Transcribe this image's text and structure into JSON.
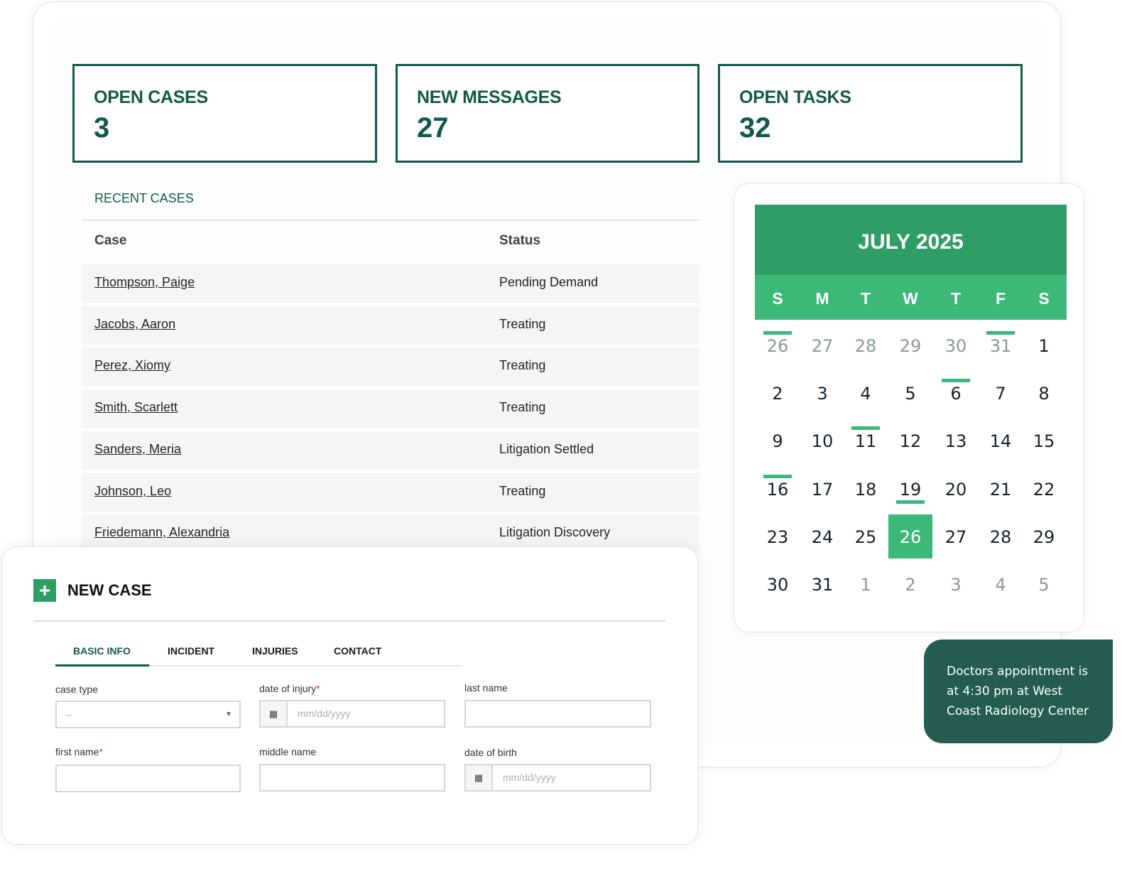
{
  "stats": [
    {
      "label": "OPEN CASES",
      "value": "3"
    },
    {
      "label": "NEW MESSAGES",
      "value": "27"
    },
    {
      "label": "OPEN TASKS",
      "value": "32"
    }
  ],
  "recent_cases": {
    "title": "RECENT CASES",
    "headers": {
      "case": "Case",
      "status": "Status"
    },
    "rows": [
      {
        "name": "Thompson, Paige",
        "status": "Pending Demand"
      },
      {
        "name": "Jacobs, Aaron",
        "status": "Treating"
      },
      {
        "name": "Perez, Xiomy",
        "status": "Treating"
      },
      {
        "name": "Smith, Scarlett",
        "status": "Treating"
      },
      {
        "name": "Sanders, Meria",
        "status": "Litigation Settled"
      },
      {
        "name": "Johnson, Leo",
        "status": "Treating"
      },
      {
        "name": "Friedemann, Alexandria",
        "status": "Litigation Discovery"
      }
    ]
  },
  "calendar": {
    "title": "JULY 2025",
    "weekdays": [
      "S",
      "M",
      "T",
      "W",
      "T",
      "F",
      "S"
    ],
    "weeks": [
      [
        {
          "d": "26",
          "other": true,
          "event": true
        },
        {
          "d": "27",
          "other": true
        },
        {
          "d": "28",
          "other": true
        },
        {
          "d": "29",
          "other": true
        },
        {
          "d": "30",
          "other": true
        },
        {
          "d": "31",
          "other": true,
          "event": true
        },
        {
          "d": "1"
        }
      ],
      [
        {
          "d": "2"
        },
        {
          "d": "3"
        },
        {
          "d": "4"
        },
        {
          "d": "5"
        },
        {
          "d": "6",
          "event": true
        },
        {
          "d": "7"
        },
        {
          "d": "8"
        }
      ],
      [
        {
          "d": "9"
        },
        {
          "d": "10"
        },
        {
          "d": "11",
          "event": true
        },
        {
          "d": "12"
        },
        {
          "d": "13"
        },
        {
          "d": "14"
        },
        {
          "d": "15"
        }
      ],
      [
        {
          "d": "16",
          "event": true
        },
        {
          "d": "17"
        },
        {
          "d": "18"
        },
        {
          "d": "19"
        },
        {
          "d": "20"
        },
        {
          "d": "21"
        },
        {
          "d": "22"
        }
      ],
      [
        {
          "d": "23"
        },
        {
          "d": "24"
        },
        {
          "d": "25"
        },
        {
          "d": "26",
          "today": true,
          "event": true
        },
        {
          "d": "27"
        },
        {
          "d": "28"
        },
        {
          "d": "29"
        }
      ],
      [
        {
          "d": "30"
        },
        {
          "d": "31"
        },
        {
          "d": "1",
          "other": true
        },
        {
          "d": "2",
          "other": true
        },
        {
          "d": "3",
          "other": true
        },
        {
          "d": "4",
          "other": true
        },
        {
          "d": "5",
          "other": true
        }
      ]
    ],
    "tooltip": "Doctors appointment is at 4:30 pm at West Coast Radiology Center",
    "accent": "#3cb878",
    "header_color": "#2e9e66"
  },
  "new_case": {
    "title": "NEW CASE",
    "tabs": [
      "BASIC INFO",
      "INCIDENT",
      "INJURIES",
      "CONTACT"
    ],
    "active_tab": "BASIC INFO",
    "fields": {
      "case_type": {
        "label": "case type",
        "value": "--"
      },
      "date_of_injury": {
        "label": "date of injury",
        "placeholder": "mm/dd/yyyy"
      },
      "last_name": {
        "label": "last name"
      },
      "first_name": {
        "label": "first name"
      },
      "middle_name": {
        "label": "middle name"
      },
      "date_of_birth": {
        "label": "date of birth",
        "placeholder": "mm/dd/yyyy"
      }
    },
    "required_mark": "*"
  }
}
